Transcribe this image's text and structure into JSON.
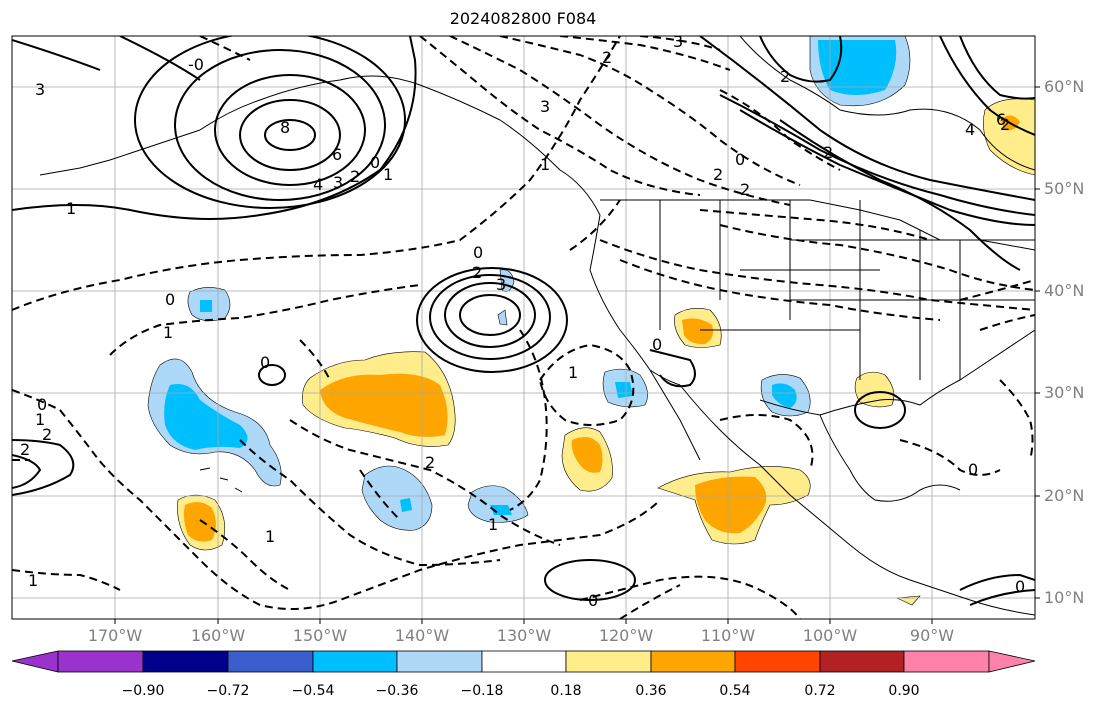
{
  "title": "2024082800 F084",
  "lat_labels": [
    "60°N",
    "50°N",
    "40°N",
    "30°N",
    "20°N",
    "10°N"
  ],
  "lon_labels": [
    "170°W",
    "160°W",
    "150°W",
    "140°W",
    "130°W",
    "120°W",
    "110°W",
    "100°W",
    "90°W"
  ],
  "colorbar": {
    "ticks": [
      "−0.90",
      "−0.72",
      "−0.54",
      "−0.36",
      "−0.18",
      "0.18",
      "0.36",
      "0.54",
      "0.72",
      "0.90"
    ],
    "colors": [
      "#9a32cd",
      "#00008b",
      "#3a5fcd",
      "#00bfff",
      "#add8f7",
      "#ffffff",
      "#ffec8b",
      "#ffa500",
      "#ff4500",
      "#b22222",
      "#ff82ab"
    ]
  },
  "contour_labels": [
    "-0",
    "3",
    "8",
    "6",
    "4",
    "3",
    "2",
    "0",
    "1",
    "1",
    "2",
    "3",
    "2",
    "3",
    "0",
    "2",
    "2",
    "2",
    "1",
    "0",
    "2",
    "3",
    "0",
    "1",
    "0",
    "0",
    "2",
    "2",
    "1",
    "2",
    "1",
    "1",
    "1",
    "0",
    "2",
    "6",
    "4",
    "0",
    "0",
    "0",
    "1"
  ]
}
